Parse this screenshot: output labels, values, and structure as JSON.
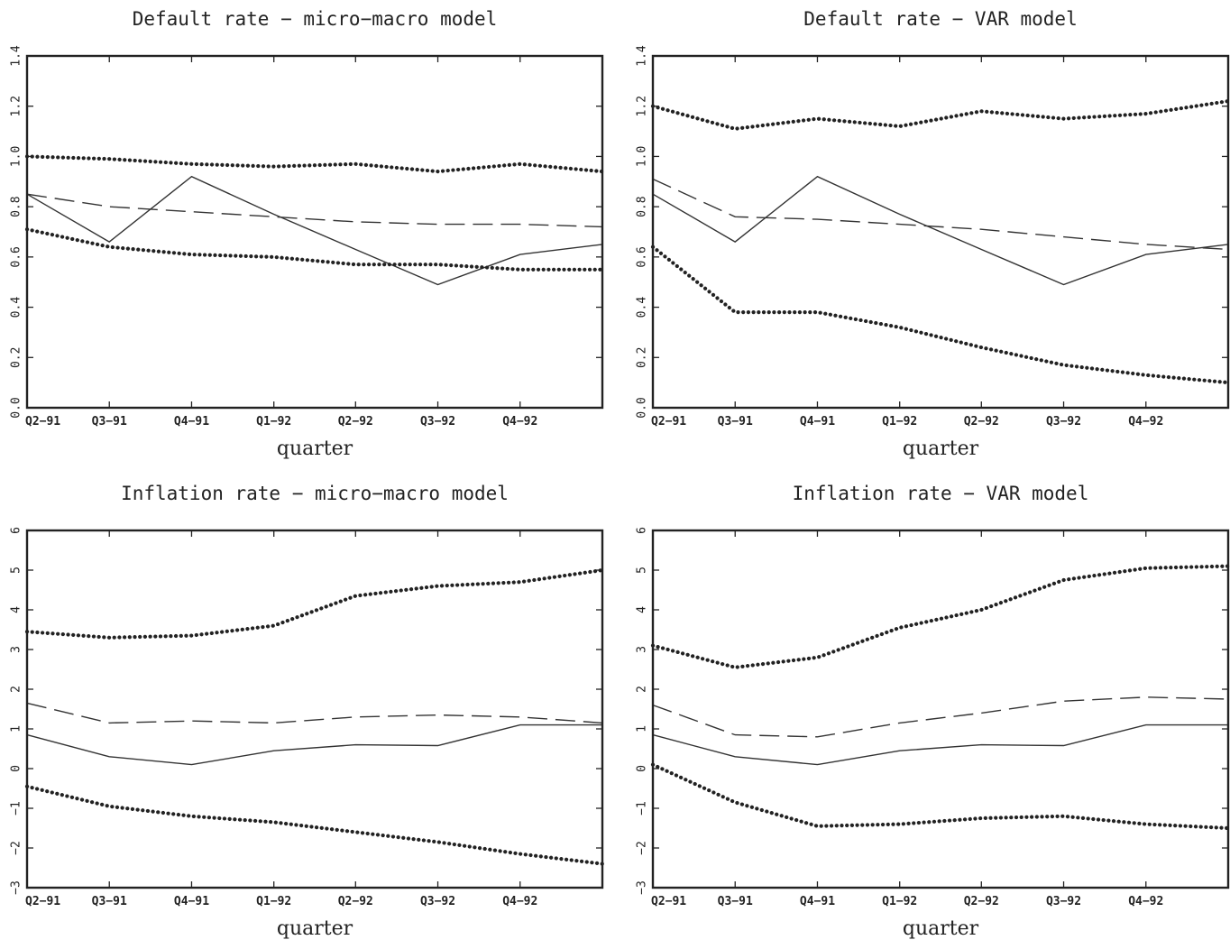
{
  "chart_data": [
    {
      "type": "line",
      "title": "Default rate − micro−macro model",
      "xlabel": "quarter",
      "ylabel": "",
      "ylim": [
        0,
        1.4
      ],
      "yticks": [
        "0.0",
        "0.2",
        "0.4",
        "0.6",
        "0.8",
        "1.0",
        "1.2",
        "1.4"
      ],
      "categories": [
        "Q2−91",
        "Q3−91",
        "Q4−91",
        "Q1−92",
        "Q2−92",
        "Q3−92",
        "Q4−92",
        ""
      ],
      "series": [
        {
          "style": "solid",
          "values": [
            0.85,
            0.66,
            0.92,
            0.77,
            0.63,
            0.49,
            0.61,
            0.65
          ]
        },
        {
          "style": "dashed",
          "values": [
            0.85,
            0.8,
            0.78,
            0.76,
            0.74,
            0.73,
            0.73,
            0.72
          ]
        },
        {
          "style": "dotted",
          "values": [
            1.0,
            0.99,
            0.97,
            0.96,
            0.97,
            0.94,
            0.97,
            0.94
          ]
        },
        {
          "style": "dotted",
          "values": [
            0.71,
            0.64,
            0.61,
            0.6,
            0.57,
            0.57,
            0.55,
            0.55
          ]
        }
      ]
    },
    {
      "type": "line",
      "title": "Default rate − VAR model",
      "xlabel": "quarter",
      "ylabel": "",
      "ylim": [
        0,
        1.4
      ],
      "yticks": [
        "0.0",
        "0.2",
        "0.4",
        "0.6",
        "0.8",
        "1.0",
        "1.2",
        "1.4"
      ],
      "categories": [
        "Q2−91",
        "Q3−91",
        "Q4−91",
        "Q1−92",
        "Q2−92",
        "Q3−92",
        "Q4−92",
        ""
      ],
      "series": [
        {
          "style": "solid",
          "values": [
            0.85,
            0.66,
            0.92,
            0.77,
            0.63,
            0.49,
            0.61,
            0.65
          ]
        },
        {
          "style": "dashed",
          "values": [
            0.91,
            0.76,
            0.75,
            0.73,
            0.71,
            0.68,
            0.65,
            0.63
          ]
        },
        {
          "style": "dotted",
          "values": [
            1.2,
            1.11,
            1.15,
            1.12,
            1.18,
            1.15,
            1.17,
            1.22
          ]
        },
        {
          "style": "dotted",
          "values": [
            0.64,
            0.38,
            0.38,
            0.32,
            0.24,
            0.17,
            0.13,
            0.1
          ]
        }
      ]
    },
    {
      "type": "line",
      "title": "Inflation rate − micro−macro model",
      "xlabel": "quarter",
      "ylabel": "",
      "ylim": [
        -3,
        6
      ],
      "yticks": [
        "−3",
        "−2",
        "−1",
        "0",
        "1",
        "2",
        "3",
        "4",
        "5",
        "6"
      ],
      "categories": [
        "Q2−91",
        "Q3−91",
        "Q4−91",
        "Q1−92",
        "Q2−92",
        "Q3−92",
        "Q4−92",
        ""
      ],
      "series": [
        {
          "style": "solid",
          "values": [
            0.85,
            0.3,
            0.1,
            0.45,
            0.6,
            0.58,
            1.1,
            1.1
          ]
        },
        {
          "style": "dashed",
          "values": [
            1.65,
            1.15,
            1.2,
            1.15,
            1.3,
            1.35,
            1.3,
            1.15
          ]
        },
        {
          "style": "dotted",
          "values": [
            3.45,
            3.3,
            3.35,
            3.6,
            4.35,
            4.6,
            4.7,
            5.0
          ]
        },
        {
          "style": "dotted",
          "values": [
            -0.45,
            -0.95,
            -1.2,
            -1.35,
            -1.6,
            -1.85,
            -2.15,
            -2.4
          ]
        }
      ]
    },
    {
      "type": "line",
      "title": "Inflation rate − VAR model",
      "xlabel": "quarter",
      "ylabel": "",
      "ylim": [
        -3,
        6
      ],
      "yticks": [
        "−3",
        "−2",
        "−1",
        "0",
        "1",
        "2",
        "3",
        "4",
        "5",
        "6"
      ],
      "categories": [
        "Q2−91",
        "Q3−91",
        "Q4−91",
        "Q1−92",
        "Q2−92",
        "Q3−92",
        "Q4−92",
        ""
      ],
      "series": [
        {
          "style": "solid",
          "values": [
            0.85,
            0.3,
            0.1,
            0.45,
            0.6,
            0.58,
            1.1,
            1.1
          ]
        },
        {
          "style": "dashed",
          "values": [
            1.6,
            0.85,
            0.8,
            1.15,
            1.4,
            1.7,
            1.8,
            1.75
          ]
        },
        {
          "style": "dotted",
          "values": [
            3.1,
            2.55,
            2.8,
            3.55,
            4.0,
            4.75,
            5.05,
            5.1
          ]
        },
        {
          "style": "dotted",
          "values": [
            0.1,
            -0.85,
            -1.45,
            -1.4,
            -1.25,
            -1.2,
            -1.4,
            -1.5
          ]
        }
      ]
    }
  ]
}
